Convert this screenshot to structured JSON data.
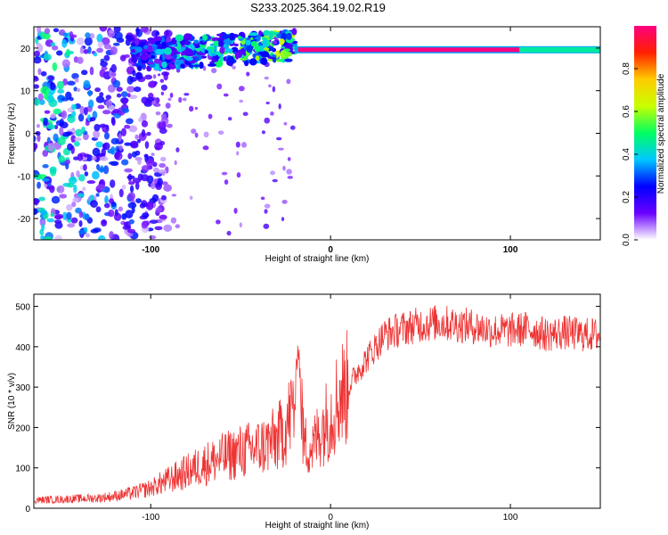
{
  "title": "S233.2025.364.19.02.R19",
  "chart_data": [
    {
      "type": "heatmap",
      "name": "spectrogram",
      "xlabel": "Height of straight line (km)",
      "ylabel": "Frequency (Hz)",
      "xlim": [
        -165,
        150
      ],
      "ylim": [
        -25,
        25
      ],
      "xticks": [
        -100,
        0,
        100
      ],
      "yticks": [
        20,
        10,
        0,
        -10,
        -20
      ],
      "colorbar": {
        "label": "Normalized spectral amplitude",
        "range": [
          0,
          1
        ],
        "ticks": [
          0.0,
          0.2,
          0.4,
          0.6,
          0.8
        ],
        "tick_labels": [
          "0.0",
          "0.2",
          "0.4",
          "0.6",
          "0.8"
        ],
        "colors": [
          "#ffffff",
          "#6a00ff",
          "#0000ff",
          "#00c8ff",
          "#00ff60",
          "#c8ff00",
          "#ffcc00",
          "#ff2000",
          "#ff0080"
        ]
      },
      "features": [
        {
          "desc": "noise region",
          "x_range": [
            -165,
            -100
          ],
          "freq_range": [
            -25,
            25
          ],
          "amplitude": 0.15
        },
        {
          "desc": "carrier line",
          "x_range": [
            -20,
            150
          ],
          "freq": 19.6,
          "amplitude": 1.0
        },
        {
          "desc": "carrier onset scatter",
          "x_range": [
            -110,
            -20
          ],
          "freq_range": [
            15,
            22
          ],
          "amplitude": 0.4
        }
      ]
    },
    {
      "type": "line",
      "name": "snr",
      "xlabel": "Height of straight line (km)",
      "ylabel": "SNR (10 * v/v)",
      "xlim": [
        -165,
        150
      ],
      "ylim": [
        0,
        530
      ],
      "xticks": [
        -100,
        0,
        100
      ],
      "yticks": [
        0,
        100,
        200,
        300,
        400,
        500
      ],
      "color": "#ee3333",
      "series": [
        {
          "name": "SNR",
          "x": [
            -165,
            -150,
            -140,
            -130,
            -120,
            -110,
            -100,
            -90,
            -80,
            -70,
            -60,
            -50,
            -40,
            -30,
            -25,
            -20,
            -18,
            -15,
            -10,
            -5,
            0,
            5,
            10,
            15,
            20,
            25,
            30,
            40,
            50,
            60,
            70,
            80,
            90,
            100,
            110,
            120,
            130,
            140,
            150
          ],
          "y": [
            20,
            22,
            24,
            25,
            30,
            38,
            50,
            70,
            90,
            110,
            125,
            140,
            150,
            170,
            200,
            260,
            420,
            160,
            150,
            200,
            230,
            280,
            300,
            340,
            370,
            400,
            430,
            445,
            455,
            460,
            455,
            450,
            440,
            440,
            445,
            430,
            435,
            430,
            430
          ]
        }
      ]
    }
  ]
}
